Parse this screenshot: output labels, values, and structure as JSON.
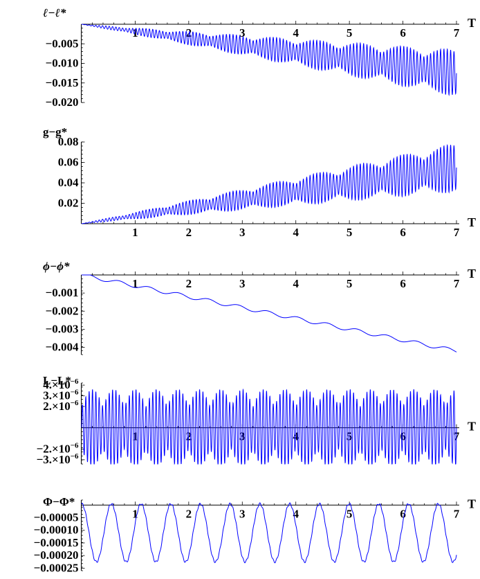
{
  "chart_data": [
    {
      "type": "line",
      "ylabel": "ℓ−ℓ*",
      "xlabel": "T",
      "xlim": [
        0,
        7
      ],
      "ylim": [
        -0.02,
        0.0
      ],
      "x_axis_at": 0,
      "x_ticks": [
        "1",
        "2",
        "3",
        "4",
        "5",
        "6",
        "7"
      ],
      "y_ticks": [
        {
          "value": -0.005,
          "label": "−0.005"
        },
        {
          "value": -0.01,
          "label": "−0.010"
        },
        {
          "value": -0.015,
          "label": "−0.015"
        },
        {
          "value": -0.02,
          "label": "−0.020"
        }
      ],
      "color": "#0000ff",
      "series": [
        {
          "trend_end": -0.0125,
          "osc_amp_end": 0.006,
          "osc_freq": 16,
          "beat_freq": 2.5,
          "ripple_amp": 0
        }
      ]
    },
    {
      "type": "line",
      "ylabel": "g−g*",
      "xlabel": "T",
      "xlim": [
        0,
        7
      ],
      "ylim": [
        0.0,
        0.08
      ],
      "x_axis_at": 0,
      "x_ticks": [
        "1",
        "2",
        "3",
        "4",
        "5",
        "6",
        "7"
      ],
      "y_ticks": [
        {
          "value": 0.02,
          "label": "0.02"
        },
        {
          "value": 0.04,
          "label": "0.04"
        },
        {
          "value": 0.06,
          "label": "0.06"
        },
        {
          "value": 0.08,
          "label": "0.08"
        }
      ],
      "color": "#0000ff",
      "series": [
        {
          "trend_end": 0.055,
          "osc_amp_end": 0.024,
          "osc_freq": 16,
          "beat_freq": 2.5,
          "ripple_amp": 0
        }
      ]
    },
    {
      "type": "line",
      "ylabel": "ϕ−ϕ*",
      "xlabel": "T",
      "xlim": [
        0,
        7
      ],
      "ylim": [
        -0.0044,
        0.0
      ],
      "x_axis_at": 0,
      "x_ticks": [
        "1",
        "2",
        "3",
        "4",
        "5",
        "6",
        "7"
      ],
      "y_ticks": [
        {
          "value": -0.001,
          "label": "−0.001"
        },
        {
          "value": -0.002,
          "label": "−0.002"
        },
        {
          "value": -0.003,
          "label": "−0.003"
        },
        {
          "value": -0.004,
          "label": "−0.004"
        }
      ],
      "color": "#0000ff",
      "series": [
        {
          "trend_end": -0.0042,
          "osc_amp_end": 0,
          "osc_freq": 16,
          "beat_freq": 2.5,
          "ripple_amp": 0.0001
        }
      ]
    },
    {
      "type": "line",
      "ylabel": "L−L*",
      "xlabel": "T",
      "xlim": [
        0,
        7
      ],
      "ylim": [
        -3.4e-06,
        4.2e-06
      ],
      "x_axis_at": 0,
      "x_ticks": [
        "1",
        "2",
        "3",
        "4",
        "5",
        "6",
        "7"
      ],
      "y_ticks": [
        {
          "value": 4e-06,
          "label": "4.×10",
          "exp": "−6"
        },
        {
          "value": 3e-06,
          "label": "3.×10",
          "exp": "−6"
        },
        {
          "value": 2e-06,
          "label": "2.×10",
          "exp": "−6"
        },
        {
          "value": -2e-06,
          "label": "−2.×10",
          "exp": "−6"
        },
        {
          "value": -3e-06,
          "label": "−3.×10",
          "exp": "−6"
        }
      ],
      "color": "#0000ff",
      "series": [
        {
          "trend_end": 0,
          "osc_amp": 3.6e-06,
          "osc_freq": 16,
          "beat_freq": 5,
          "ripple_amp": 0
        }
      ]
    },
    {
      "type": "line",
      "ylabel": "Φ−Φ*",
      "xlabel": "T",
      "xlim": [
        0,
        7
      ],
      "ylim": [
        -0.00026,
        2e-05
      ],
      "x_axis_at": 0,
      "x_ticks": [
        "1",
        "2",
        "3",
        "4",
        "5",
        "6",
        "7"
      ],
      "y_ticks": [
        {
          "value": -5e-05,
          "label": "−0.00005"
        },
        {
          "value": -0.0001,
          "label": "−0.00010"
        },
        {
          "value": -0.00015,
          "label": "−0.00015"
        },
        {
          "value": -0.0002,
          "label": "−0.00020"
        },
        {
          "value": -0.00025,
          "label": "−0.00025"
        }
      ],
      "color": "#0000ff",
      "series": [
        {
          "center": -0.00011,
          "amp": 0.000115,
          "period": 0.555
        }
      ]
    }
  ]
}
